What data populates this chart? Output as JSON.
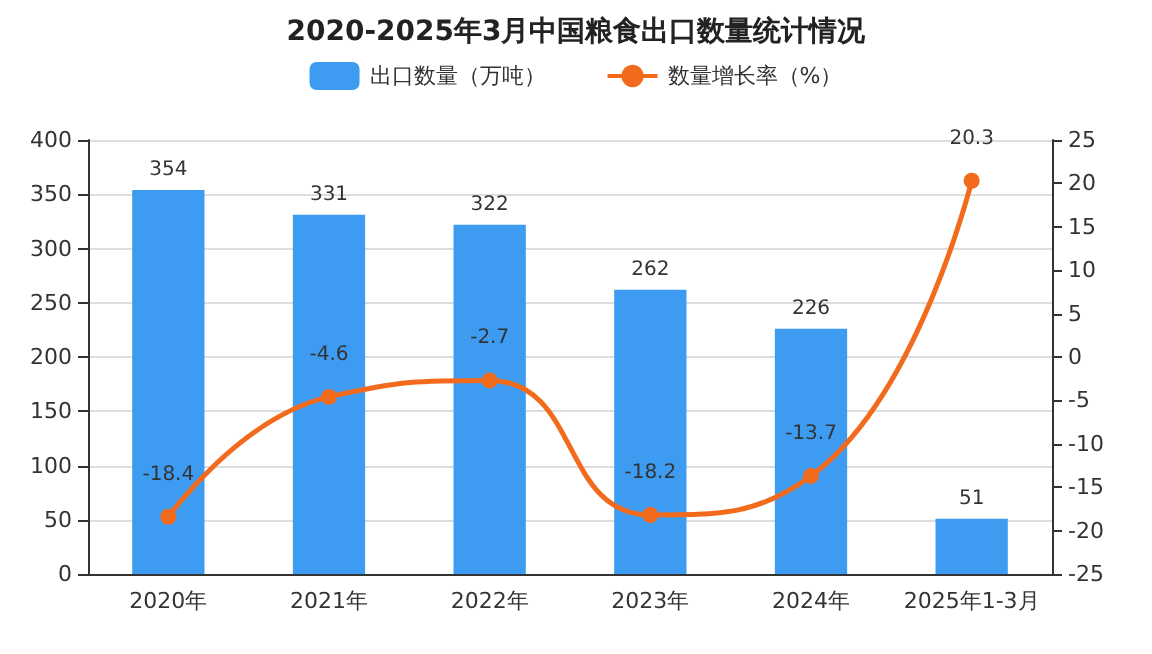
{
  "chart_data": {
    "type": "bar",
    "title": "2020-2025年3月中国粮食出口数量统计情况",
    "categories": [
      "2020年",
      "2021年",
      "2022年",
      "2023年",
      "2024年",
      "2025年1-3月"
    ],
    "series": [
      {
        "name": "出口数量（万吨）",
        "color": "#3d9cf2",
        "values": [
          354,
          331,
          322,
          262,
          226,
          51
        ]
      },
      {
        "name": "数量增长率（%）",
        "type": "line",
        "axis": "y2",
        "color": "#f26b1d",
        "marker": "circle",
        "values": [
          -18.4,
          -4.6,
          -2.7,
          -18.2,
          -13.7,
          20.3
        ]
      }
    ],
    "ylim": [
      0,
      400
    ],
    "yticks": [
      0,
      50,
      100,
      150,
      200,
      250,
      300,
      350,
      400
    ],
    "y2lim": [
      -25,
      25
    ],
    "y2ticks": [
      -25,
      -20,
      -15,
      -10,
      -5,
      0,
      5,
      10,
      15,
      20,
      25
    ],
    "data_labels": true,
    "grid": "y",
    "legend": "top"
  }
}
